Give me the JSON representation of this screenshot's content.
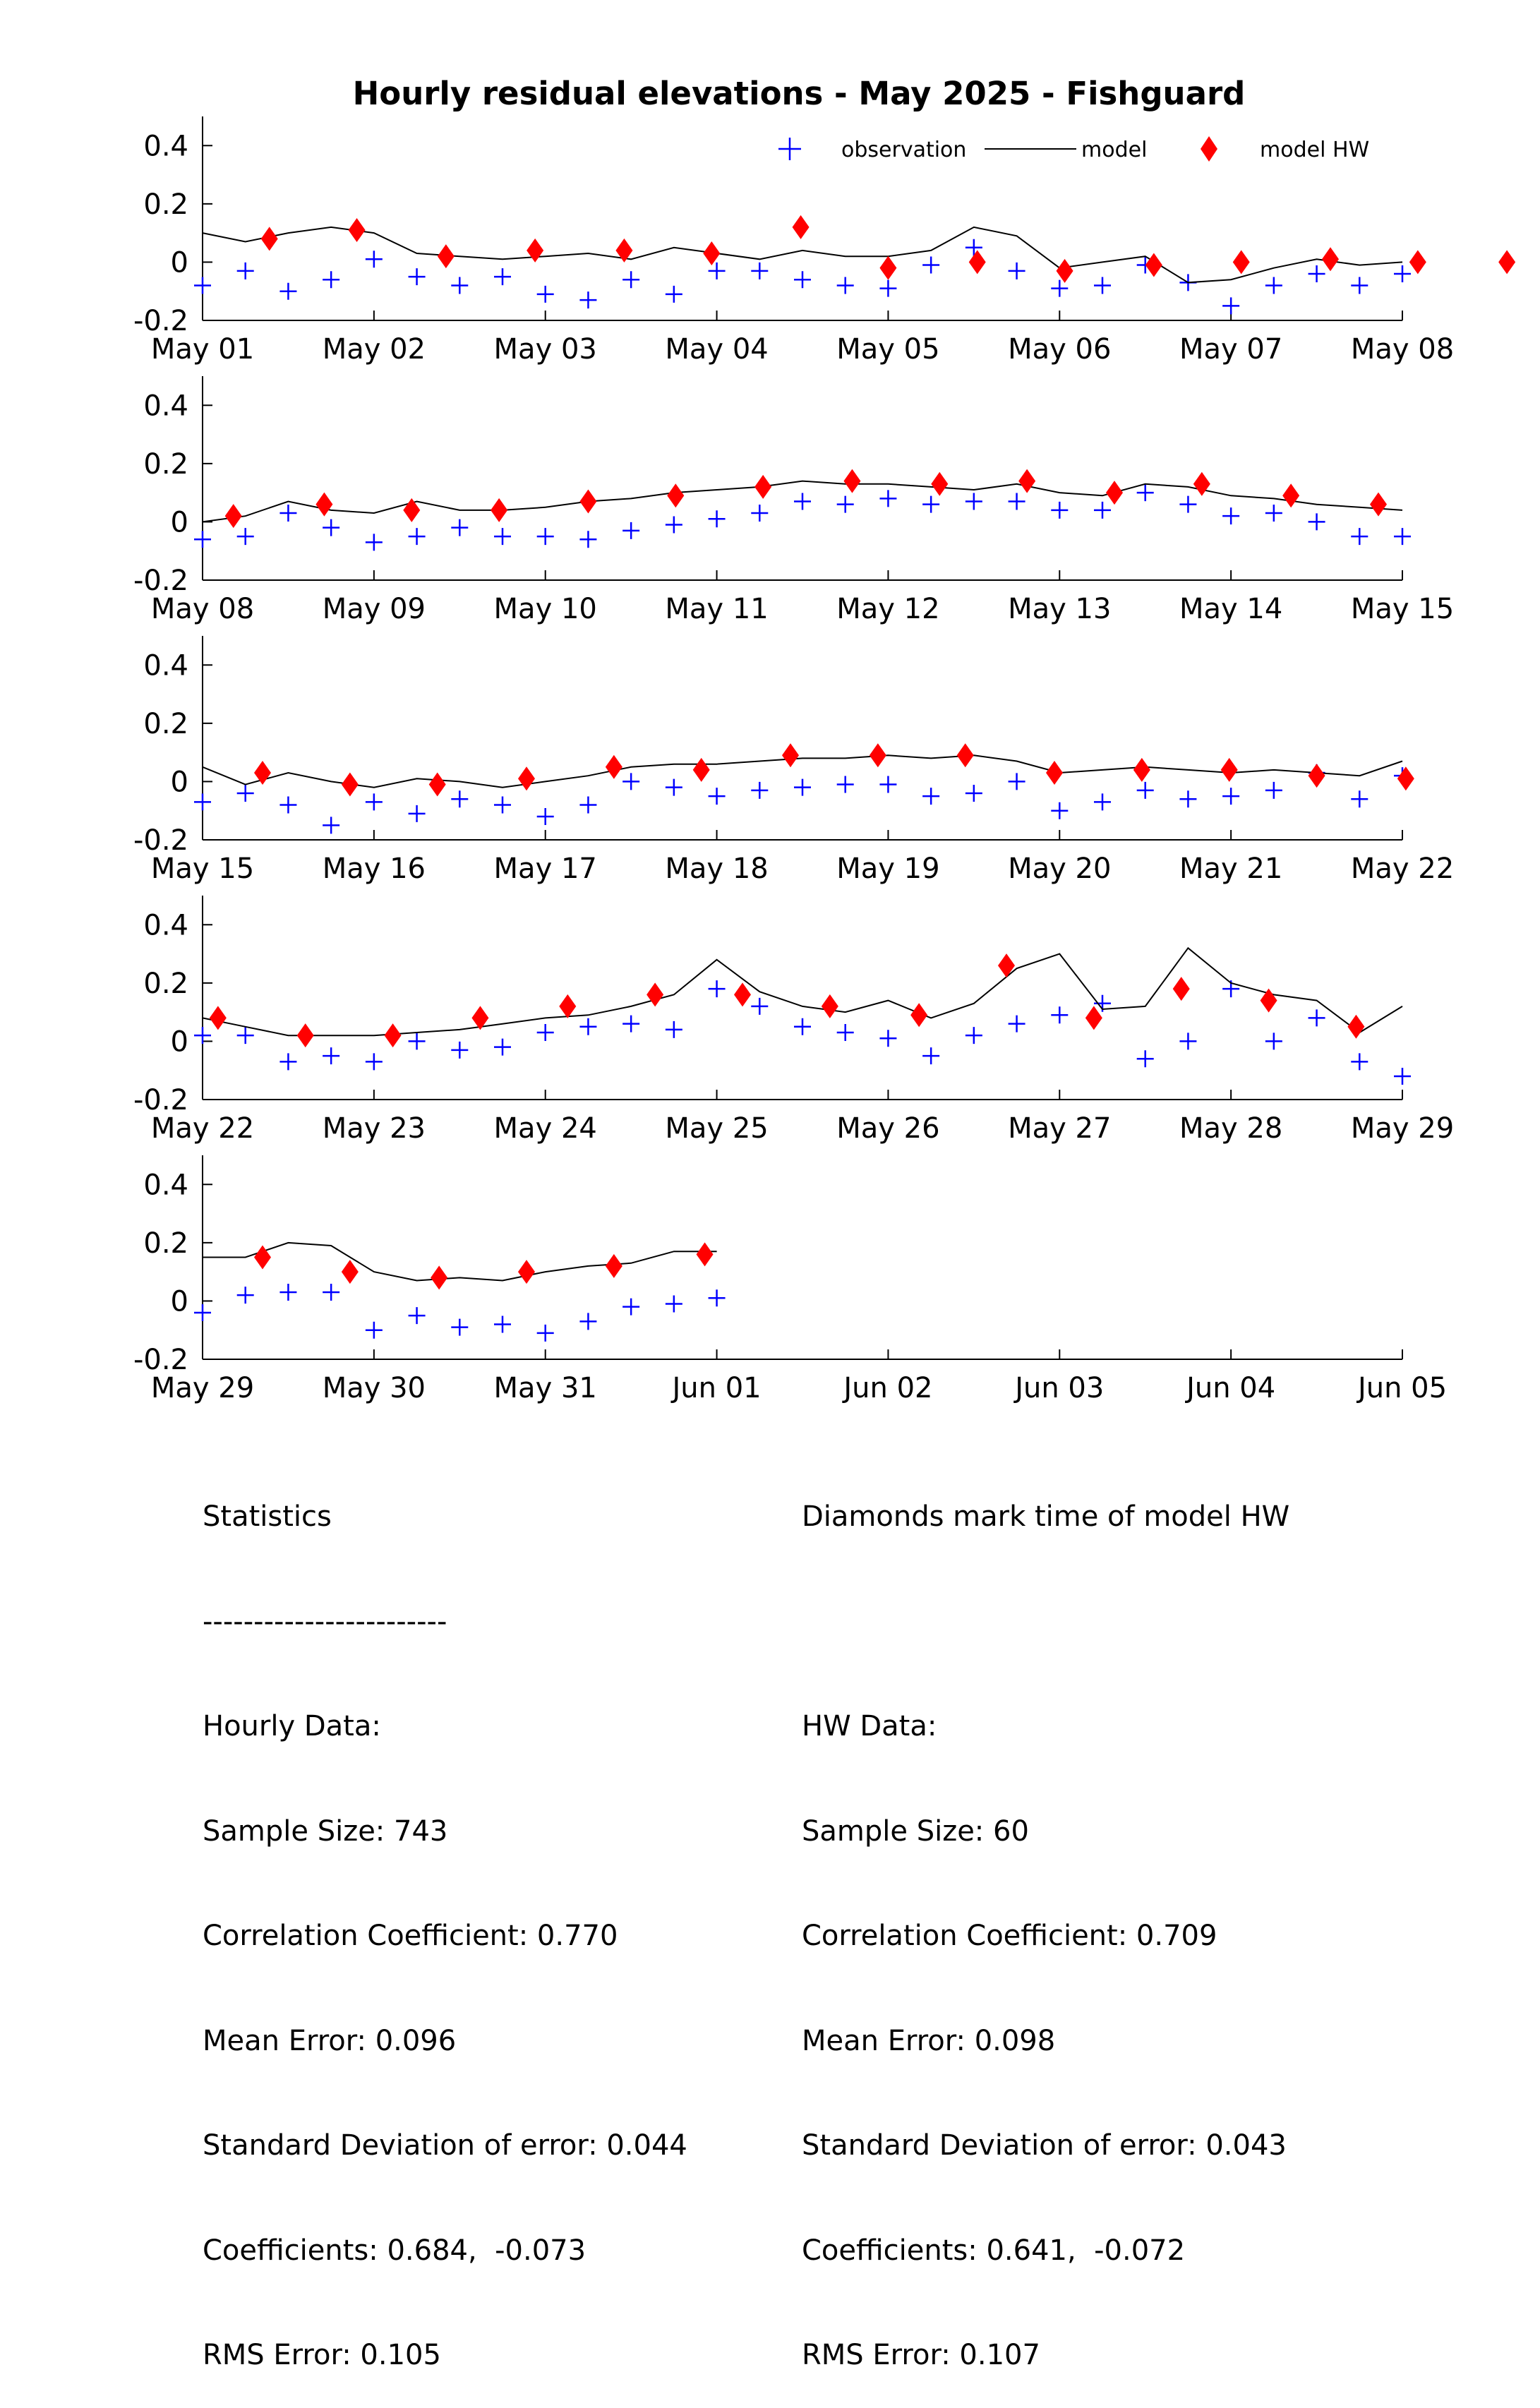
{
  "title": "Hourly residual elevations - May  2025 - Fishguard",
  "legend": {
    "observation": "observation",
    "model": "model",
    "model_hw": "model HW",
    "position": "top-right"
  },
  "colors": {
    "observation": "#0000ff",
    "model": "#000000",
    "model_hw": "#ff0000"
  },
  "chart_data": [
    {
      "type": "line",
      "title": "Hourly residual elevations - May  2025 - Fishguard",
      "x_tick_labels": [
        "May 01",
        "May 02",
        "May 03",
        "May 04",
        "May 05",
        "May 06",
        "May 07",
        "May 08"
      ],
      "y_tick_labels": [
        "-0.2",
        "0",
        "0.2",
        "0.4"
      ],
      "xlim": [
        "2025-05-01",
        "2025-05-08"
      ],
      "ylim": [
        -0.2,
        0.5
      ],
      "grid": false,
      "series": [
        {
          "name": "observation",
          "marker": "plus",
          "x_days": [
            0,
            0.25,
            0.5,
            0.75,
            1,
            1.25,
            1.5,
            1.75,
            2,
            2.25,
            2.5,
            2.75,
            3,
            3.25,
            3.5,
            3.75,
            4,
            4.25,
            4.5,
            4.75,
            5,
            5.25,
            5.5,
            5.75,
            6,
            6.25,
            6.5,
            6.75,
            7
          ],
          "values": [
            -0.08,
            -0.03,
            -0.1,
            -0.06,
            0.01,
            -0.05,
            -0.08,
            -0.05,
            -0.11,
            -0.13,
            -0.06,
            -0.11,
            -0.03,
            -0.03,
            -0.06,
            -0.08,
            -0.09,
            -0.01,
            0.05,
            -0.03,
            -0.09,
            -0.08,
            -0.01,
            -0.07,
            -0.15,
            -0.08,
            -0.04,
            -0.08,
            -0.04
          ]
        },
        {
          "name": "model",
          "x_days": [
            0,
            0.25,
            0.5,
            0.75,
            1,
            1.25,
            1.5,
            1.75,
            2,
            2.25,
            2.5,
            2.75,
            3,
            3.25,
            3.5,
            3.75,
            4,
            4.25,
            4.5,
            4.75,
            5,
            5.25,
            5.5,
            5.75,
            6,
            6.25,
            6.5,
            6.75,
            7
          ],
          "values": [
            0.1,
            0.07,
            0.1,
            0.12,
            0.1,
            0.03,
            0.02,
            0.01,
            0.02,
            0.03,
            0.01,
            0.05,
            0.03,
            0.01,
            0.04,
            0.02,
            0.02,
            0.04,
            0.12,
            0.09,
            -0.02,
            0.0,
            0.02,
            -0.07,
            -0.06,
            -0.02,
            0.01,
            -0.01,
            0.0
          ]
        },
        {
          "name": "model HW",
          "marker": "diamond",
          "x_days": [
            0.39,
            0.9,
            1.42,
            1.94,
            2.46,
            2.97,
            3.49,
            4.0,
            4.52,
            5.03,
            5.55,
            6.06,
            6.58,
            7.09,
            7.61
          ],
          "values": [
            0.08,
            0.11,
            0.02,
            0.04,
            0.04,
            0.03,
            0.12,
            -0.02,
            0.0,
            -0.03,
            -0.01,
            0.0,
            0.01,
            0.0,
            0.0
          ]
        }
      ]
    },
    {
      "type": "line",
      "x_tick_labels": [
        "May 08",
        "May 09",
        "May 10",
        "May 11",
        "May 12",
        "May 13",
        "May 14",
        "May 15"
      ],
      "y_tick_labels": [
        "-0.2",
        "0",
        "0.2",
        "0.4"
      ],
      "xlim": [
        "2025-05-08",
        "2025-05-15"
      ],
      "ylim": [
        -0.2,
        0.5
      ],
      "grid": false,
      "series": [
        {
          "name": "observation",
          "marker": "plus",
          "x_days": [
            0,
            0.25,
            0.5,
            0.75,
            1,
            1.25,
            1.5,
            1.75,
            2,
            2.25,
            2.5,
            2.75,
            3,
            3.25,
            3.5,
            3.75,
            4,
            4.25,
            4.5,
            4.75,
            5,
            5.25,
            5.5,
            5.75,
            6,
            6.25,
            6.5,
            6.75,
            7
          ],
          "values": [
            -0.06,
            -0.05,
            0.03,
            -0.02,
            -0.07,
            -0.05,
            -0.02,
            -0.05,
            -0.05,
            -0.06,
            -0.03,
            -0.01,
            0.01,
            0.03,
            0.07,
            0.06,
            0.08,
            0.06,
            0.07,
            0.07,
            0.04,
            0.04,
            0.1,
            0.06,
            0.02,
            0.03,
            0.0,
            -0.05,
            -0.05
          ]
        },
        {
          "name": "model",
          "x_days": [
            0,
            0.25,
            0.5,
            0.75,
            1,
            1.25,
            1.5,
            1.75,
            2,
            2.25,
            2.5,
            2.75,
            3,
            3.25,
            3.5,
            3.75,
            4,
            4.25,
            4.5,
            4.75,
            5,
            5.25,
            5.5,
            5.75,
            6,
            6.25,
            6.5,
            6.75,
            7
          ],
          "values": [
            0.0,
            0.02,
            0.07,
            0.04,
            0.03,
            0.07,
            0.04,
            0.04,
            0.05,
            0.07,
            0.08,
            0.1,
            0.11,
            0.12,
            0.14,
            0.13,
            0.13,
            0.12,
            0.11,
            0.13,
            0.1,
            0.09,
            0.13,
            0.12,
            0.09,
            0.08,
            0.06,
            0.05,
            0.04
          ]
        },
        {
          "name": "model HW",
          "marker": "diamond",
          "x_days": [
            0.18,
            0.71,
            1.22,
            1.73,
            2.25,
            2.76,
            3.27,
            3.79,
            4.3,
            4.81,
            5.32,
            5.83,
            6.35,
            6.86
          ],
          "values": [
            0.02,
            0.06,
            0.04,
            0.04,
            0.07,
            0.09,
            0.12,
            0.14,
            0.13,
            0.14,
            0.1,
            0.13,
            0.09,
            0.06
          ]
        }
      ]
    },
    {
      "type": "line",
      "x_tick_labels": [
        "May 15",
        "May 16",
        "May 17",
        "May 18",
        "May 19",
        "May 20",
        "May 21",
        "May 22"
      ],
      "y_tick_labels": [
        "-0.2",
        "0",
        "0.2",
        "0.4"
      ],
      "xlim": [
        "2025-05-15",
        "2025-05-22"
      ],
      "ylim": [
        -0.2,
        0.5
      ],
      "grid": false,
      "series": [
        {
          "name": "observation",
          "marker": "plus",
          "x_days": [
            0,
            0.25,
            0.5,
            0.75,
            1,
            1.25,
            1.5,
            1.75,
            2,
            2.25,
            2.5,
            2.75,
            3,
            3.25,
            3.5,
            3.75,
            4,
            4.25,
            4.5,
            4.75,
            5,
            5.25,
            5.5,
            5.75,
            6,
            6.25,
            6.5,
            6.75,
            7
          ],
          "values": [
            -0.07,
            -0.04,
            -0.08,
            -0.15,
            -0.07,
            -0.11,
            -0.06,
            -0.08,
            -0.12,
            -0.08,
            0.0,
            -0.02,
            -0.05,
            -0.03,
            -0.02,
            -0.01,
            -0.01,
            -0.05,
            -0.04,
            0.0,
            -0.1,
            -0.07,
            -0.03,
            -0.06,
            -0.05,
            -0.03,
            0.03,
            -0.06,
            0.02
          ]
        },
        {
          "name": "model",
          "x_days": [
            0,
            0.25,
            0.5,
            0.75,
            1,
            1.25,
            1.5,
            1.75,
            2,
            2.25,
            2.5,
            2.75,
            3,
            3.25,
            3.5,
            3.75,
            4,
            4.25,
            4.5,
            4.75,
            5,
            5.25,
            5.5,
            5.75,
            6,
            6.25,
            6.5,
            6.75,
            7
          ],
          "values": [
            0.05,
            -0.01,
            0.03,
            0.0,
            -0.02,
            0.01,
            0.0,
            -0.02,
            0.0,
            0.02,
            0.05,
            0.06,
            0.06,
            0.07,
            0.08,
            0.08,
            0.09,
            0.08,
            0.09,
            0.07,
            0.03,
            0.04,
            0.05,
            0.04,
            0.03,
            0.04,
            0.03,
            0.02,
            0.07
          ]
        },
        {
          "name": "model HW",
          "marker": "diamond",
          "x_days": [
            0.35,
            0.86,
            1.37,
            1.89,
            2.4,
            2.91,
            3.43,
            3.94,
            4.45,
            4.97,
            5.48,
            5.99,
            6.5,
            7.02
          ],
          "values": [
            0.03,
            -0.01,
            -0.01,
            0.01,
            0.05,
            0.04,
            0.09,
            0.09,
            0.09,
            0.03,
            0.04,
            0.04,
            0.02,
            0.01
          ]
        }
      ]
    },
    {
      "type": "line",
      "x_tick_labels": [
        "May 22",
        "May 23",
        "May 24",
        "May 25",
        "May 26",
        "May 27",
        "May 28",
        "May 29"
      ],
      "y_tick_labels": [
        "-0.2",
        "0",
        "0.2",
        "0.4"
      ],
      "xlim": [
        "2025-05-22",
        "2025-05-29"
      ],
      "ylim": [
        -0.2,
        0.5
      ],
      "grid": false,
      "series": [
        {
          "name": "observation",
          "marker": "plus",
          "x_days": [
            0,
            0.25,
            0.5,
            0.75,
            1,
            1.25,
            1.5,
            1.75,
            2,
            2.25,
            2.5,
            2.75,
            3,
            3.25,
            3.5,
            3.75,
            4,
            4.25,
            4.5,
            4.75,
            5,
            5.25,
            5.5,
            5.75,
            6,
            6.25,
            6.5,
            6.75,
            7
          ],
          "values": [
            0.02,
            0.02,
            -0.07,
            -0.05,
            -0.07,
            0.0,
            -0.03,
            -0.02,
            0.03,
            0.05,
            0.06,
            0.04,
            0.18,
            0.12,
            0.05,
            0.03,
            0.01,
            -0.05,
            0.02,
            0.06,
            0.09,
            0.13,
            -0.06,
            0.0,
            0.18,
            0.0,
            0.08,
            -0.07,
            -0.12
          ]
        },
        {
          "name": "model",
          "x_days": [
            0,
            0.25,
            0.5,
            0.75,
            1,
            1.25,
            1.5,
            1.75,
            2,
            2.25,
            2.5,
            2.75,
            3,
            3.25,
            3.5,
            3.75,
            4,
            4.25,
            4.5,
            4.75,
            5,
            5.25,
            5.5,
            5.75,
            6,
            6.25,
            6.5,
            6.75,
            7
          ],
          "values": [
            0.08,
            0.05,
            0.02,
            0.02,
            0.02,
            0.03,
            0.04,
            0.06,
            0.08,
            0.09,
            0.12,
            0.16,
            0.28,
            0.17,
            0.12,
            0.1,
            0.14,
            0.08,
            0.13,
            0.25,
            0.3,
            0.11,
            0.12,
            0.32,
            0.2,
            0.16,
            0.14,
            0.03,
            0.12
          ]
        },
        {
          "name": "model HW",
          "marker": "diamond",
          "x_days": [
            0.09,
            0.6,
            1.11,
            1.62,
            2.13,
            2.64,
            3.15,
            3.66,
            4.18,
            4.69,
            5.2,
            5.71,
            6.22,
            6.73
          ],
          "values": [
            0.08,
            0.02,
            0.02,
            0.08,
            0.12,
            0.16,
            0.16,
            0.12,
            0.09,
            0.26,
            0.08,
            0.18,
            0.14,
            0.05
          ]
        }
      ]
    },
    {
      "type": "line",
      "x_tick_labels": [
        "May 29",
        "May 30",
        "May 31",
        "Jun 01",
        "Jun 02",
        "Jun 03",
        "Jun 04",
        "Jun 05"
      ],
      "y_tick_labels": [
        "-0.2",
        "0",
        "0.2",
        "0.4"
      ],
      "xlim": [
        "2025-05-29",
        "2025-06-05"
      ],
      "ylim": [
        -0.2,
        0.5
      ],
      "grid": false,
      "series": [
        {
          "name": "observation",
          "marker": "plus",
          "x_days": [
            0,
            0.25,
            0.5,
            0.75,
            1,
            1.25,
            1.5,
            1.75,
            2,
            2.25,
            2.5,
            2.75,
            3
          ],
          "values": [
            -0.04,
            0.02,
            0.03,
            0.03,
            -0.1,
            -0.05,
            -0.09,
            -0.08,
            -0.11,
            -0.07,
            -0.02,
            -0.01,
            0.01
          ]
        },
        {
          "name": "model",
          "x_days": [
            0,
            0.25,
            0.5,
            0.75,
            1,
            1.25,
            1.5,
            1.75,
            2,
            2.25,
            2.5,
            2.75,
            3
          ],
          "values": [
            0.15,
            0.15,
            0.2,
            0.19,
            0.1,
            0.07,
            0.08,
            0.07,
            0.1,
            0.12,
            0.13,
            0.17,
            0.17
          ]
        },
        {
          "name": "model HW",
          "marker": "diamond",
          "x_days": [
            0.35,
            0.86,
            1.38,
            1.89,
            2.4,
            2.93
          ],
          "values": [
            0.15,
            0.1,
            0.08,
            0.1,
            0.12,
            0.16
          ]
        }
      ]
    }
  ],
  "statistics": {
    "left": [
      "Statistics",
      "------------------------",
      "Hourly Data:",
      "Sample Size: 743",
      "Correlation Coefficient: 0.770",
      "Mean Error: 0.096",
      "Standard Deviation of error: 0.044",
      "Coefficients: 0.684,  -0.073",
      "RMS Error: 0.105"
    ],
    "right": [
      "Diamonds mark time of model HW",
      "",
      "HW Data:",
      "Sample Size: 60",
      "Correlation Coefficient: 0.709",
      "Mean Error: 0.098",
      "Standard Deviation of error: 0.043",
      "Coefficients: 0.641,  -0.072",
      "RMS Error: 0.107"
    ]
  }
}
